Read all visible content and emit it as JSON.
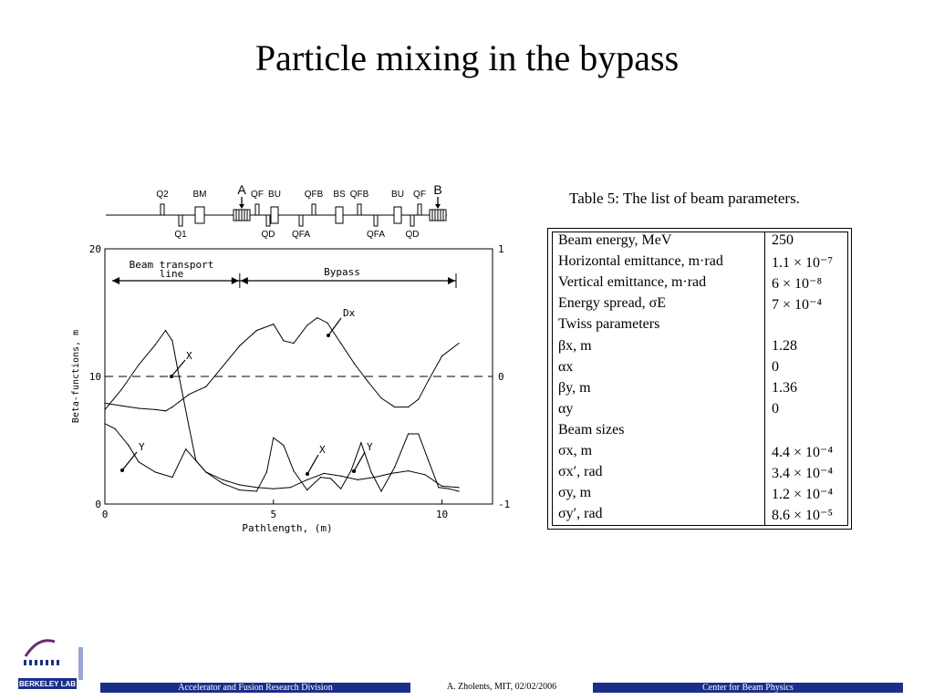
{
  "slide": {
    "title": "Particle mixing in the bypass"
  },
  "chart_data": {
    "type": "line",
    "xlabel": "Pathlength, (m)",
    "ylabel": "Beta-functions, m",
    "xlim": [
      0,
      11.5
    ],
    "ylim": [
      0,
      20
    ],
    "y2lim": [
      -1,
      1
    ],
    "x_ticks": [
      "0",
      "5",
      "10"
    ],
    "y_ticks": [
      "0",
      "10",
      "20"
    ],
    "y2_ticks": [
      "-1",
      "0",
      "1"
    ],
    "grid": false,
    "annotations": {
      "region_transport": "Beam transport\nline",
      "region_bypass": "Bypass",
      "labels": [
        "X",
        "Y",
        "Dx",
        "X",
        "Y"
      ]
    },
    "lattice": {
      "marker_a": "A",
      "marker_b": "B",
      "elements_top": [
        "Q2",
        "BM",
        "QF",
        "BU",
        "QFB",
        "BS",
        "QFB",
        "BU",
        "QF"
      ],
      "elements_bottom": [
        "Q1",
        "QD",
        "QFA",
        "QFA",
        "QD"
      ]
    },
    "series": [
      {
        "x": [
          0,
          0.5,
          1.0,
          1.5,
          1.8,
          2.0,
          2.2,
          2.5,
          3.0,
          3.5,
          4.0,
          4.5,
          5.0,
          5.3,
          5.6,
          6.0,
          6.3,
          6.6,
          7.0,
          7.4,
          7.8,
          8.2,
          8.6,
          9.0,
          9.3,
          9.6,
          10.0,
          10.5
        ],
        "values": [
          7.9,
          7.7,
          7.5,
          7.4,
          7.3,
          7.6,
          8.0,
          8.6,
          9.2,
          10.8,
          12.4,
          13.6,
          14.1,
          12.8,
          12.6,
          14.0,
          14.6,
          14.2,
          12.6,
          11.0,
          9.6,
          8.3,
          7.6,
          7.6,
          8.2,
          9.7,
          11.6,
          12.6
        ]
      },
      {
        "x": [
          0,
          0.5,
          1.0,
          1.5,
          1.8,
          2.0,
          2.2,
          2.5,
          2.7,
          3.0,
          3.5,
          4.0,
          4.5,
          5.0,
          5.5,
          6.0,
          6.5,
          7.0,
          7.5,
          8.0,
          8.5,
          9.0,
          9.5,
          10.0,
          10.5
        ],
        "values": [
          7.4,
          9.0,
          10.9,
          12.5,
          13.6,
          12.8,
          10.0,
          6.0,
          3.4,
          2.5,
          1.9,
          1.5,
          1.3,
          1.2,
          1.3,
          1.9,
          2.4,
          2.2,
          1.9,
          2.1,
          2.4,
          2.6,
          2.3,
          1.4,
          1.3
        ]
      },
      {
        "x": [
          0,
          0.3,
          0.7,
          1.0,
          1.5,
          2.0,
          2.4,
          2.7,
          3.0,
          3.5,
          4.0,
          4.5,
          4.8,
          5.0,
          5.3,
          5.6,
          6.0,
          6.4,
          6.7,
          7.0,
          7.3,
          7.6,
          7.9,
          8.2,
          8.6,
          9.0,
          9.3,
          9.6,
          9.9,
          10.2,
          10.5
        ],
        "values": [
          6.3,
          5.9,
          4.6,
          3.3,
          2.5,
          2.1,
          4.3,
          3.4,
          2.5,
          1.6,
          1.1,
          1.0,
          2.5,
          5.2,
          4.6,
          2.6,
          1.1,
          2.1,
          2.0,
          1.2,
          2.6,
          4.8,
          2.5,
          1.0,
          2.9,
          5.5,
          5.5,
          3.4,
          1.3,
          1.2,
          1.0
        ]
      }
    ]
  },
  "table": {
    "caption": "Table 5: The list of beam parameters.",
    "rows": [
      {
        "param": "Beam energy, MeV",
        "value": "250"
      },
      {
        "param": "Horizontal emittance, m·rad",
        "value": "1.1 × 10⁻⁷"
      },
      {
        "param": "Vertical emittance, m·rad",
        "value": "6 × 10⁻⁸"
      },
      {
        "param": "Energy spread, σE",
        "value": "7 × 10⁻⁴"
      },
      {
        "param": "Twiss parameters",
        "value": ""
      },
      {
        "param": "βx, m",
        "value": "1.28"
      },
      {
        "param": "αx",
        "value": "0"
      },
      {
        "param": "βy, m",
        "value": "1.36"
      },
      {
        "param": "αy",
        "value": "0"
      },
      {
        "param": "Beam sizes",
        "value": ""
      },
      {
        "param": "σx, m",
        "value": "4.4 × 10⁻⁴"
      },
      {
        "param": "σx′, rad",
        "value": "3.4 × 10⁻⁴"
      },
      {
        "param": "σy, m",
        "value": "1.2 × 10⁻⁴"
      },
      {
        "param": "σy′, rad",
        "value": "8.6 × 10⁻⁵"
      }
    ]
  },
  "footer": {
    "left": "Accelerator and Fusion Research Division",
    "middle": "A. Zholents,    MIT,  02/02/2006",
    "right": "Center for Beam Physics",
    "logo_text": "BERKELEY LAB",
    "bar_color": "#1a2e8a"
  }
}
